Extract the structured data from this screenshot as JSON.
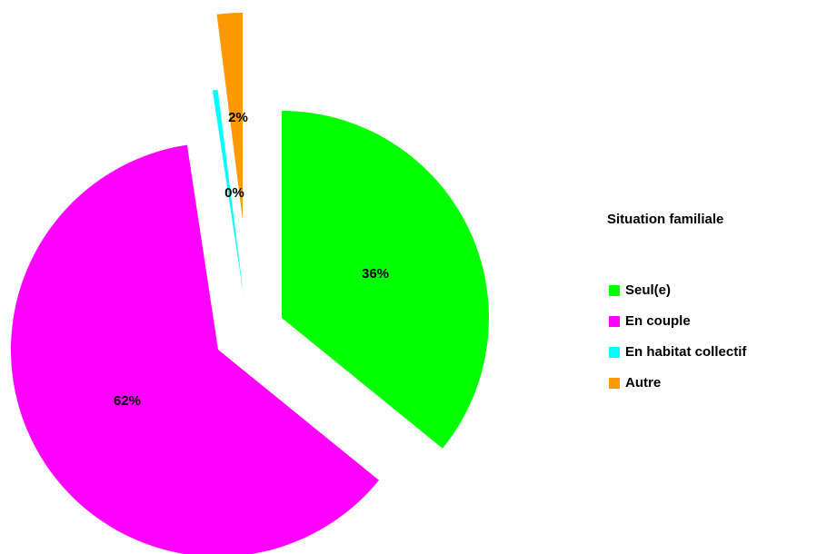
{
  "chart_data": {
    "type": "pie",
    "legend_title": "Situation familiale",
    "categories": [
      "Seul(e)",
      "En couple",
      "En habitat collectif",
      "Autre"
    ],
    "values": [
      36,
      62,
      0.4,
      2
    ],
    "value_labels": [
      "36%",
      "62%",
      "0%",
      "2%"
    ],
    "colors": [
      "#00ff00",
      "#ff00ff",
      "#00ffff",
      "#ff9900"
    ],
    "legend": "right"
  }
}
